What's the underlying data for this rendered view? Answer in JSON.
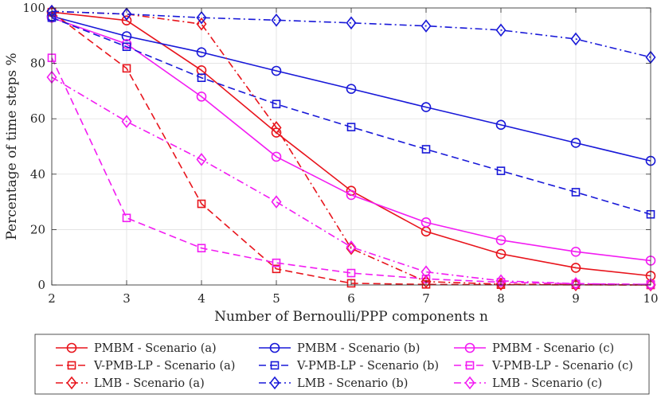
{
  "chart_data": {
    "type": "line",
    "title": "",
    "xlabel": "Number of Bernoulli/PPP components n",
    "ylabel": "Percentage of time steps %",
    "xlim": [
      2,
      10
    ],
    "ylim": [
      0,
      100
    ],
    "xticks": [
      2,
      3,
      4,
      5,
      6,
      7,
      8,
      9,
      10
    ],
    "yticks": [
      0,
      20,
      40,
      60,
      80,
      100
    ],
    "grid": true,
    "legend_position": "bottom",
    "x": [
      2,
      3,
      4,
      5,
      6,
      7,
      8,
      9,
      10
    ],
    "series": [
      {
        "name": "PMBM - Scenario (a)",
        "color": "#e8141c",
        "line": "solid",
        "marker": "circle",
        "values": [
          98.5,
          95.5,
          77.5,
          55,
          34,
          19.3,
          11.2,
          6.2,
          3.3
        ]
      },
      {
        "name": "PMBM - Scenario (b)",
        "color": "#1818d8",
        "line": "solid",
        "marker": "circle",
        "values": [
          97,
          89.8,
          84,
          77.3,
          70.8,
          64.2,
          57.8,
          51.3,
          44.8
        ]
      },
      {
        "name": "PMBM - Scenario (c)",
        "color": "#f21cf2",
        "line": "solid",
        "marker": "circle",
        "values": [
          96.5,
          87,
          68,
          46.3,
          32.5,
          22.6,
          16.2,
          12,
          8.8
        ]
      },
      {
        "name": "V-PMB-LP - Scenario (a)",
        "color": "#e8141c",
        "line": "dashed",
        "marker": "square",
        "values": [
          98.5,
          78.2,
          29.3,
          5.8,
          0.6,
          0.2,
          0.1,
          0.05,
          0
        ]
      },
      {
        "name": "V-PMB-LP - Scenario (b)",
        "color": "#1818d8",
        "line": "dashed",
        "marker": "square",
        "values": [
          96.5,
          86,
          74.8,
          65.3,
          57,
          49,
          41.2,
          33.5,
          25.5
        ]
      },
      {
        "name": "V-PMB-LP - Scenario (c)",
        "color": "#f21cf2",
        "line": "dashed",
        "marker": "square",
        "values": [
          82,
          24.2,
          13.3,
          8,
          4.3,
          2.2,
          1,
          0.4,
          0.2
        ]
      },
      {
        "name": "LMB - Scenario (a)",
        "color": "#e8141c",
        "line": "dashdot",
        "marker": "diamond",
        "values": [
          98.8,
          97.8,
          94.2,
          56.8,
          13.2,
          1.2,
          0.3,
          0.1,
          0
        ]
      },
      {
        "name": "LMB - Scenario (b)",
        "color": "#1818d8",
        "line": "dashdot",
        "marker": "diamond",
        "values": [
          98.8,
          97.8,
          96.5,
          95.6,
          94.6,
          93.5,
          92,
          88.8,
          82.2
        ]
      },
      {
        "name": "LMB - Scenario (c)",
        "color": "#f21cf2",
        "line": "dashdot",
        "marker": "diamond",
        "values": [
          75,
          59,
          45.3,
          30,
          13.7,
          4.7,
          1.5,
          0.5,
          0.2
        ]
      }
    ]
  }
}
